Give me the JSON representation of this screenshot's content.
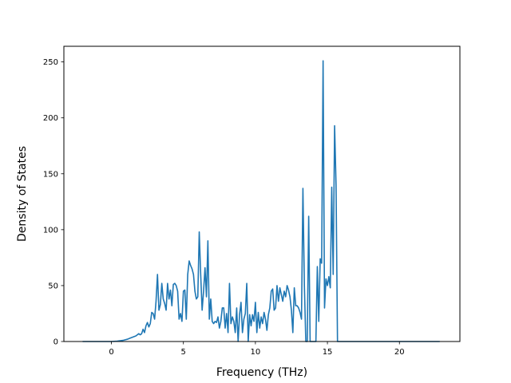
{
  "chart_data": {
    "type": "line",
    "title": "",
    "xlabel": "Frequency (THz)",
    "ylabel": "Density of States",
    "xlim": [
      -3.3,
      24.2
    ],
    "ylim": [
      0,
      264
    ],
    "xticks": [
      0,
      5,
      10,
      15,
      20
    ],
    "yticks": [
      0,
      50,
      100,
      150,
      200,
      250
    ],
    "grid": false,
    "legend": "none",
    "series": [
      {
        "color": "#1f77b4",
        "points": [
          [
            -2.0,
            0
          ],
          [
            -1.0,
            0
          ],
          [
            0.0,
            0
          ],
          [
            0.4,
            0.3
          ],
          [
            0.8,
            1
          ],
          [
            1.1,
            2
          ],
          [
            1.3,
            3
          ],
          [
            1.5,
            4
          ],
          [
            1.7,
            5
          ],
          [
            1.8,
            6
          ],
          [
            1.9,
            7
          ],
          [
            2.0,
            6
          ],
          [
            2.1,
            7
          ],
          [
            2.2,
            11
          ],
          [
            2.3,
            8
          ],
          [
            2.4,
            14
          ],
          [
            2.5,
            17
          ],
          [
            2.6,
            13
          ],
          [
            2.7,
            16
          ],
          [
            2.8,
            26
          ],
          [
            2.9,
            25
          ],
          [
            3.0,
            20
          ],
          [
            3.1,
            36
          ],
          [
            3.2,
            60
          ],
          [
            3.3,
            28
          ],
          [
            3.4,
            33
          ],
          [
            3.5,
            52
          ],
          [
            3.6,
            38
          ],
          [
            3.7,
            34
          ],
          [
            3.8,
            28
          ],
          [
            3.9,
            52
          ],
          [
            4.0,
            38
          ],
          [
            4.1,
            46
          ],
          [
            4.2,
            32
          ],
          [
            4.3,
            51
          ],
          [
            4.4,
            52
          ],
          [
            4.5,
            50
          ],
          [
            4.6,
            45
          ],
          [
            4.7,
            20
          ],
          [
            4.8,
            25
          ],
          [
            4.9,
            18
          ],
          [
            5.0,
            45
          ],
          [
            5.1,
            46
          ],
          [
            5.2,
            20
          ],
          [
            5.3,
            60
          ],
          [
            5.4,
            72
          ],
          [
            5.5,
            68
          ],
          [
            5.6,
            65
          ],
          [
            5.7,
            60
          ],
          [
            5.8,
            45
          ],
          [
            5.9,
            38
          ],
          [
            6.0,
            40
          ],
          [
            6.1,
            98
          ],
          [
            6.2,
            60
          ],
          [
            6.3,
            28
          ],
          [
            6.4,
            45
          ],
          [
            6.5,
            66
          ],
          [
            6.6,
            40
          ],
          [
            6.7,
            90
          ],
          [
            6.8,
            20
          ],
          [
            6.9,
            38
          ],
          [
            7.0,
            18
          ],
          [
            7.1,
            16
          ],
          [
            7.2,
            18
          ],
          [
            7.3,
            17
          ],
          [
            7.4,
            22
          ],
          [
            7.5,
            12
          ],
          [
            7.6,
            18
          ],
          [
            7.7,
            30
          ],
          [
            7.8,
            30
          ],
          [
            7.9,
            12
          ],
          [
            8.0,
            25
          ],
          [
            8.1,
            8
          ],
          [
            8.2,
            52
          ],
          [
            8.3,
            16
          ],
          [
            8.4,
            22
          ],
          [
            8.5,
            18
          ],
          [
            8.6,
            8
          ],
          [
            8.7,
            30
          ],
          [
            8.8,
            0
          ],
          [
            8.9,
            24
          ],
          [
            9.0,
            35
          ],
          [
            9.1,
            8
          ],
          [
            9.2,
            20
          ],
          [
            9.3,
            25
          ],
          [
            9.4,
            52
          ],
          [
            9.5,
            0
          ],
          [
            9.6,
            24
          ],
          [
            9.7,
            14
          ],
          [
            9.8,
            24
          ],
          [
            9.9,
            18
          ],
          [
            10.0,
            35
          ],
          [
            10.1,
            8
          ],
          [
            10.2,
            26
          ],
          [
            10.3,
            12
          ],
          [
            10.4,
            22
          ],
          [
            10.5,
            16
          ],
          [
            10.6,
            26
          ],
          [
            10.7,
            20
          ],
          [
            10.8,
            10
          ],
          [
            10.9,
            24
          ],
          [
            11.0,
            30
          ],
          [
            11.1,
            45
          ],
          [
            11.2,
            47
          ],
          [
            11.3,
            28
          ],
          [
            11.4,
            30
          ],
          [
            11.5,
            50
          ],
          [
            11.6,
            36
          ],
          [
            11.7,
            48
          ],
          [
            11.8,
            42
          ],
          [
            11.9,
            36
          ],
          [
            12.0,
            45
          ],
          [
            12.1,
            40
          ],
          [
            12.2,
            50
          ],
          [
            12.3,
            46
          ],
          [
            12.4,
            40
          ],
          [
            12.5,
            28
          ],
          [
            12.6,
            8
          ],
          [
            12.7,
            48
          ],
          [
            12.8,
            32
          ],
          [
            12.9,
            32
          ],
          [
            13.0,
            30
          ],
          [
            13.1,
            26
          ],
          [
            13.2,
            20
          ],
          [
            13.3,
            137
          ],
          [
            13.4,
            50
          ],
          [
            13.5,
            0
          ],
          [
            13.6,
            0
          ],
          [
            13.7,
            112
          ],
          [
            13.8,
            0
          ],
          [
            13.9,
            0
          ],
          [
            14.0,
            0
          ],
          [
            14.1,
            0
          ],
          [
            14.2,
            0
          ],
          [
            14.3,
            67
          ],
          [
            14.4,
            18
          ],
          [
            14.5,
            74
          ],
          [
            14.6,
            70
          ],
          [
            14.7,
            251
          ],
          [
            14.8,
            30
          ],
          [
            14.9,
            56
          ],
          [
            15.0,
            50
          ],
          [
            15.1,
            58
          ],
          [
            15.2,
            48
          ],
          [
            15.3,
            138
          ],
          [
            15.4,
            60
          ],
          [
            15.5,
            193
          ],
          [
            15.6,
            140
          ],
          [
            15.7,
            0
          ],
          [
            16.0,
            0
          ],
          [
            17.0,
            0
          ],
          [
            18.0,
            0
          ],
          [
            19.0,
            0
          ],
          [
            20.0,
            0
          ],
          [
            21.0,
            0
          ],
          [
            22.0,
            0
          ],
          [
            22.8,
            0
          ]
        ]
      }
    ]
  }
}
